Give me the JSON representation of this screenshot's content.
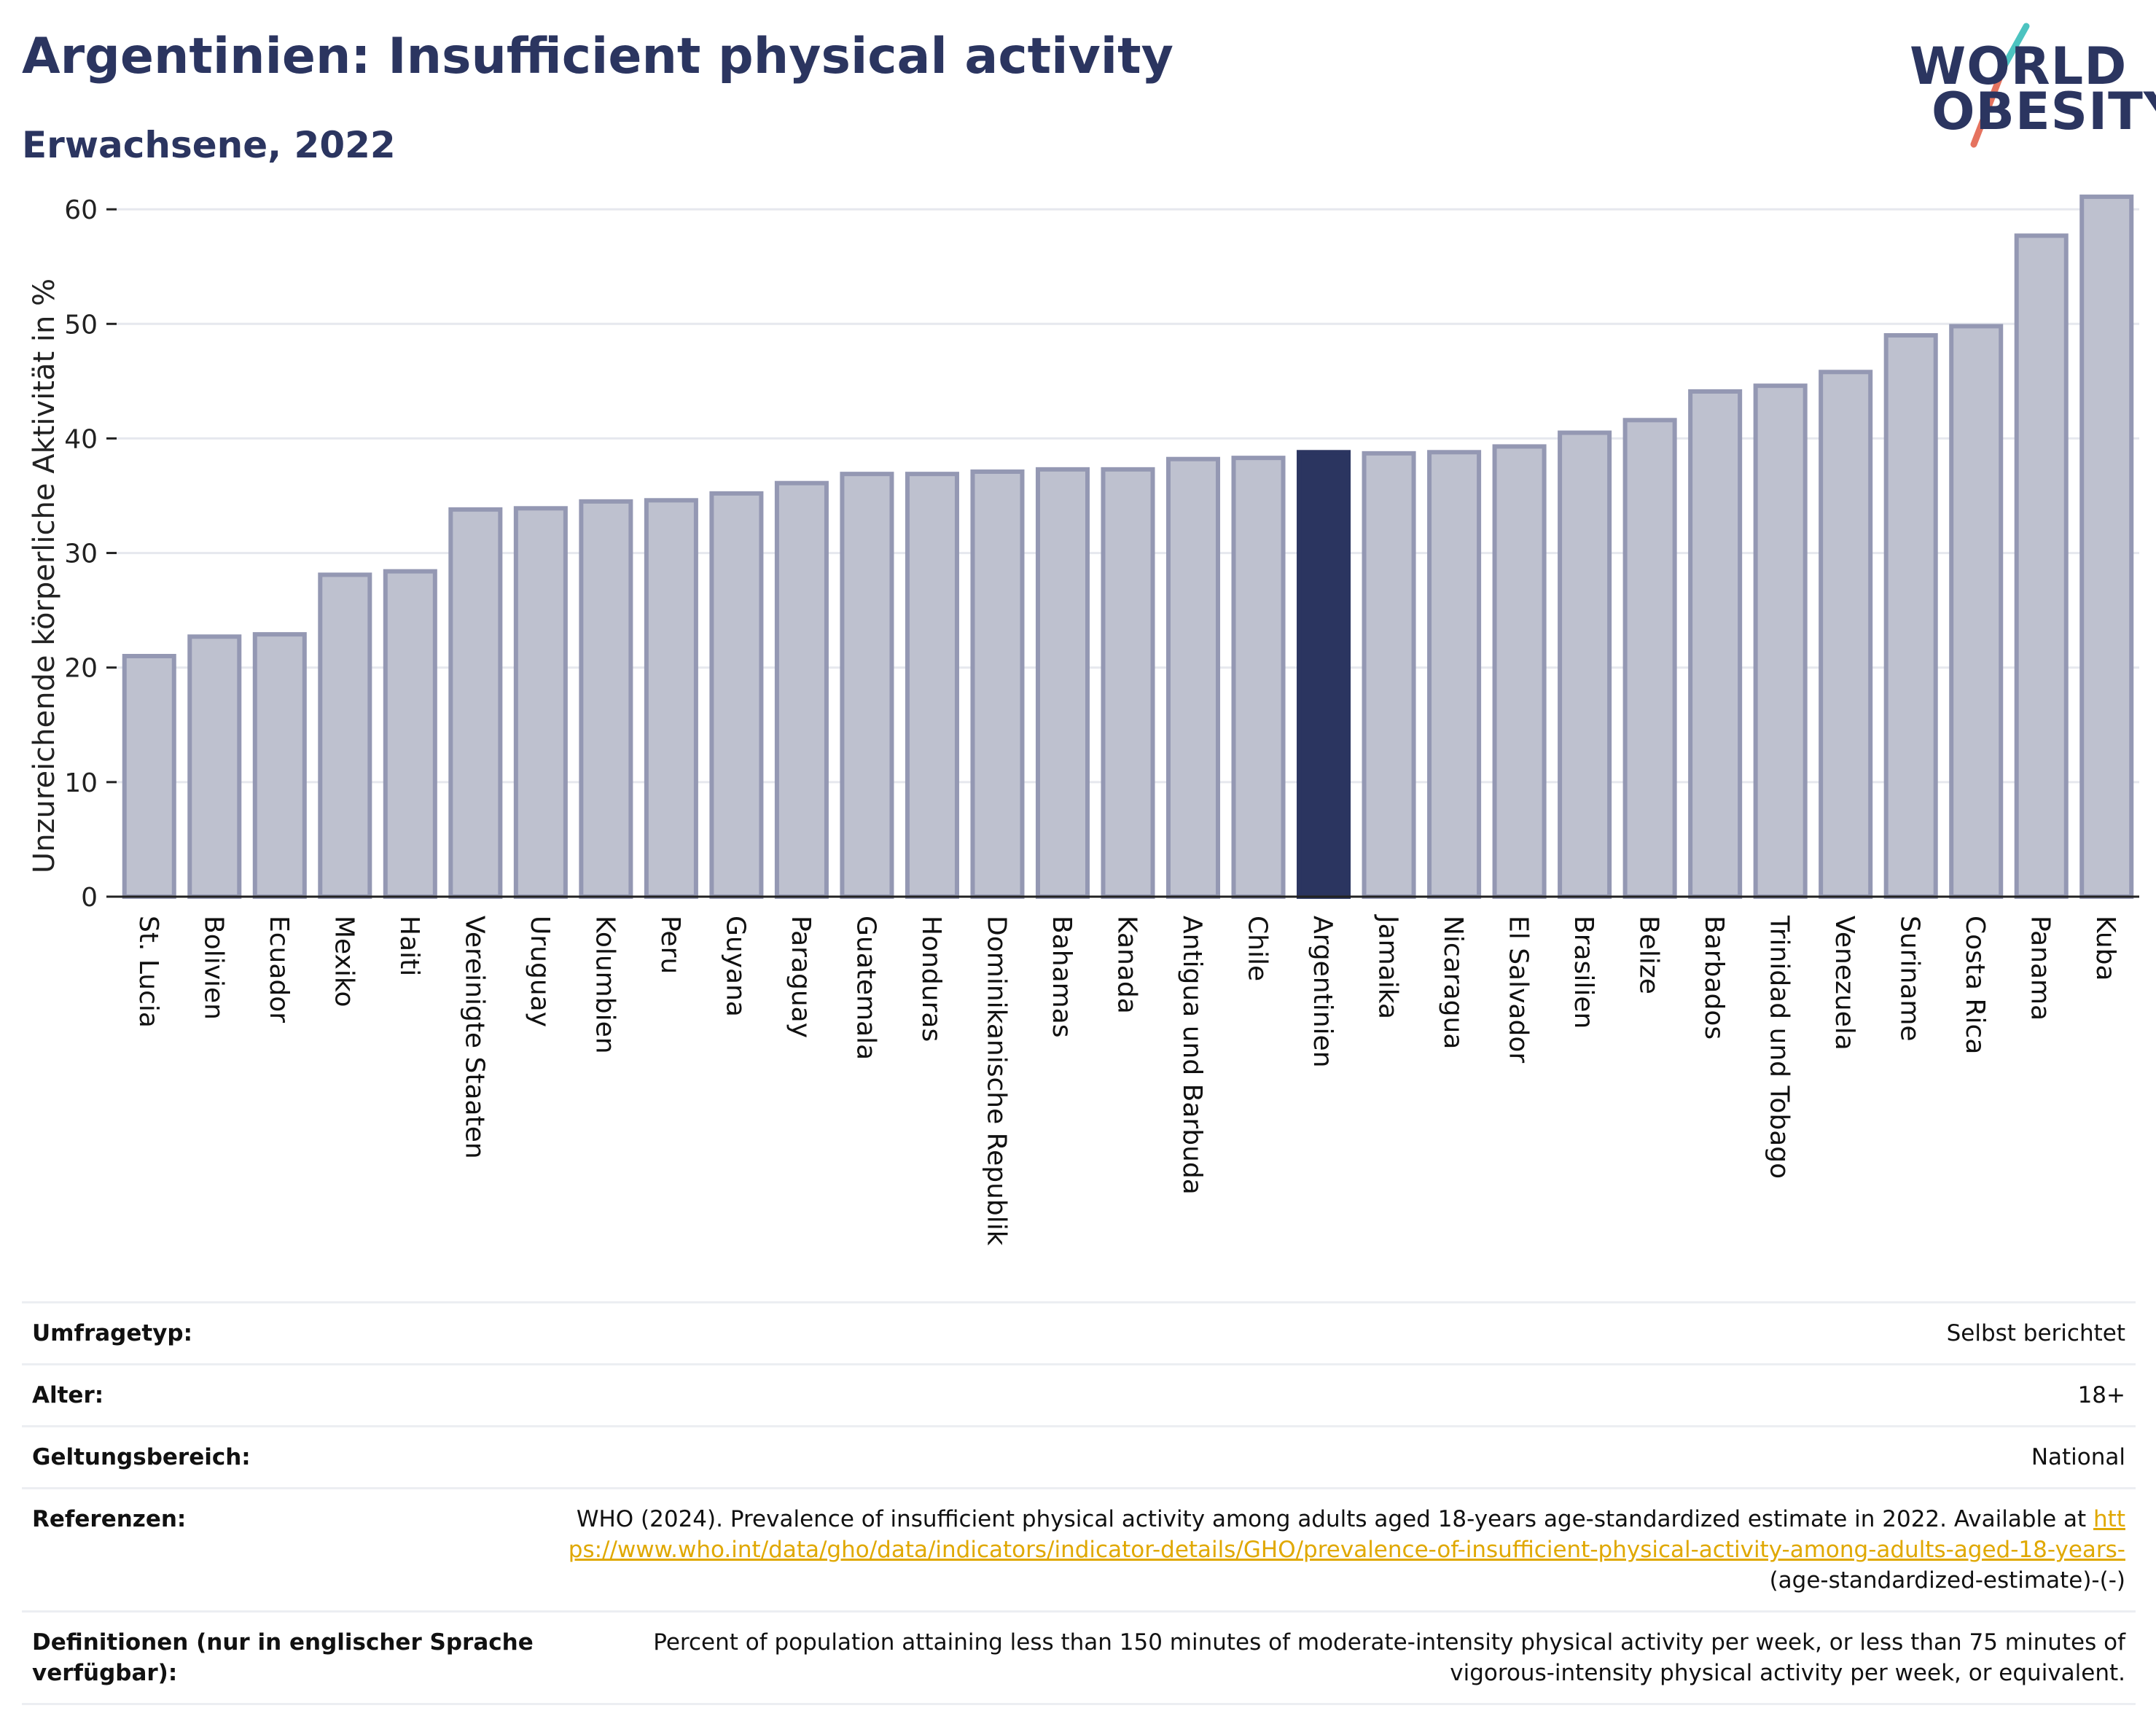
{
  "header": {
    "title": "Argentinien: Insufficient physical activity",
    "subtitle": "Erwachsene, 2022"
  },
  "logo": {
    "line1": "WORLD",
    "line2": "OBESITY",
    "slash_colors": [
      "#4cc3c0",
      "#e5735f"
    ]
  },
  "colors": {
    "highlight": "#2b3560",
    "bar_fill": "#bec1cf",
    "bar_stroke": "#9498b3",
    "text": "#2b3560",
    "link": "#e0a800"
  },
  "chart_data": {
    "type": "bar",
    "title": "Argentinien: Insufficient physical activity",
    "subtitle": "Erwachsene, 2022",
    "xlabel": "",
    "ylabel": "Unzureichende körperliche Aktivität in %",
    "ylim": [
      0,
      63
    ],
    "yticks": [
      0,
      10,
      20,
      30,
      40,
      50,
      60
    ],
    "grid": true,
    "highlight": "Argentinien",
    "categories": [
      "St. Lucia",
      "Bolivien",
      "Ecuador",
      "Mexiko",
      "Haiti",
      "Vereinigte Staaten",
      "Uruguay",
      "Kolumbien",
      "Peru",
      "Guyana",
      "Paraguay",
      "Guatemala",
      "Honduras",
      "Dominikanische Republik",
      "Bahamas",
      "Kanada",
      "Antigua und Barbuda",
      "Chile",
      "Argentinien",
      "Jamaika",
      "Nicaragua",
      "El Salvador",
      "Brasilien",
      "Belize",
      "Barbados",
      "Trinidad und Tobago",
      "Venezuela",
      "Suriname",
      "Costa Rica",
      "Panama",
      "Kuba"
    ],
    "values": [
      21.0,
      22.7,
      22.9,
      28.1,
      28.4,
      33.8,
      33.9,
      34.5,
      34.6,
      35.2,
      36.1,
      36.9,
      36.9,
      37.1,
      37.3,
      37.3,
      38.2,
      38.3,
      38.8,
      38.7,
      38.8,
      39.3,
      40.5,
      41.6,
      44.1,
      44.6,
      45.8,
      49.0,
      49.8,
      57.7,
      61.1
    ]
  },
  "meta": {
    "survey_type_label": "Umfragetyp:",
    "survey_type_value": "Selbst berichtet",
    "age_label": "Alter:",
    "age_value": "18+",
    "coverage_label": "Geltungsbereich:",
    "coverage_value": "National",
    "references_label": "Referenzen:",
    "references_text": "WHO (2024). Prevalence of insufficient physical activity among adults aged 18-years age-standardized estimate in 2022. Available at ",
    "references_link": "https://www.who.int/data/gho/data/indicators/indicator-details/GHO/prevalence-of-insufficient-physical-activity-among-adults-aged-18-years-",
    "references_suffix": "(age-standardized-estimate)-(-)",
    "definitions_label": "Definitionen (nur in englischer Sprache verfügbar):",
    "definitions_value": "Percent of population attaining less than 150 minutes of moderate-intensity physical activity per week, or less than 75 minutes of vigorous-intensity physical activity per week, or equivalent."
  }
}
